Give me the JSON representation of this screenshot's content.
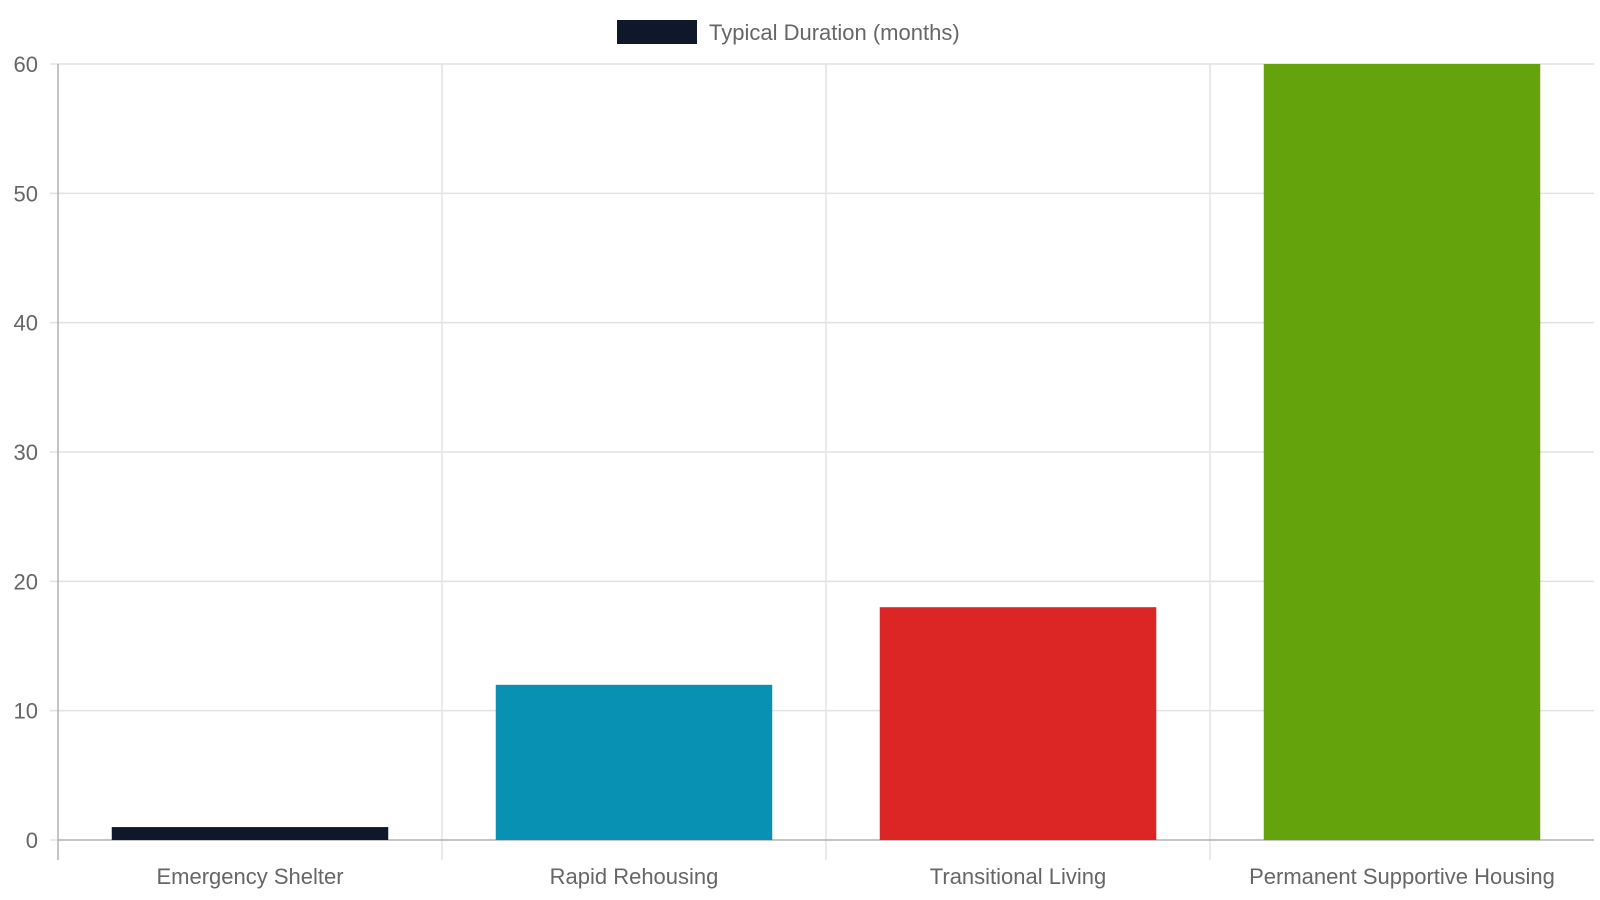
{
  "chart_data": {
    "type": "bar",
    "title": "",
    "xlabel": "",
    "ylabel": "",
    "categories": [
      "Emergency Shelter",
      "Rapid Rehousing",
      "Transitional Living",
      "Permanent Supportive Housing"
    ],
    "series": [
      {
        "name": "Typical Duration (months)",
        "values": [
          1,
          12,
          18,
          60
        ],
        "colors": [
          "#0f172a",
          "#0891b2",
          "#dc2626",
          "#65a30d"
        ]
      }
    ],
    "ylim": [
      0,
      60
    ],
    "yticks": [
      0,
      10,
      20,
      30,
      40,
      50,
      60
    ],
    "legend": {
      "position": "top-center",
      "label": "Typical Duration (months)",
      "swatch_color": "#0f172a"
    },
    "grid": true
  }
}
